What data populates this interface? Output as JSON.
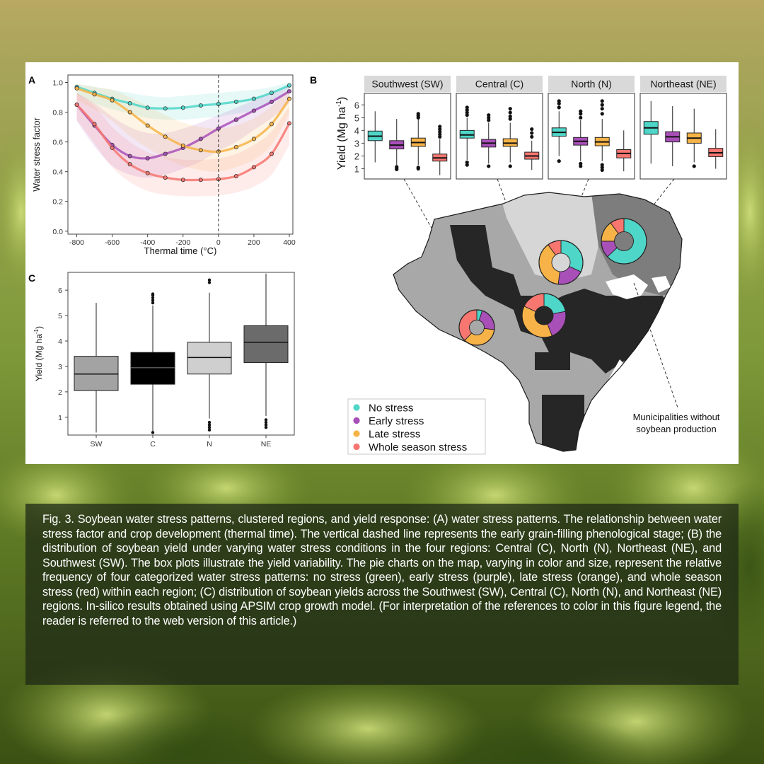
{
  "chart_data": [
    {
      "panel_label": "A",
      "type": "line",
      "xlabel": "Thermal time (°C)",
      "ylabel": "Water stress factor",
      "xlim": [
        -850,
        420
      ],
      "ylim": [
        -0.02,
        1.05
      ],
      "xticks": [
        -800,
        -600,
        -400,
        -200,
        0,
        200,
        400
      ],
      "xtick_labels": [
        "-800",
        "-600",
        "-400",
        "-200",
        "0",
        "200",
        "400"
      ],
      "yticks": [
        0.0,
        0.2,
        0.4,
        0.6,
        0.8,
        1.0
      ],
      "ytick_labels": [
        "0.0",
        "0.2",
        "0.4",
        "0.6",
        "0.8",
        "1.0"
      ],
      "grid": false,
      "vline_x": 0,
      "x": [
        -800,
        -700,
        -600,
        -500,
        -400,
        -300,
        -200,
        -100,
        0,
        100,
        200,
        300,
        400
      ],
      "series": [
        {
          "color": "#4ed6c8",
          "values": [
            0.97,
            0.93,
            0.89,
            0.86,
            0.83,
            0.825,
            0.83,
            0.845,
            0.855,
            0.87,
            0.89,
            0.93,
            0.98
          ],
          "band_upper": [
            0.99,
            0.97,
            0.95,
            0.93,
            0.91,
            0.9,
            0.91,
            0.92,
            0.93,
            0.94,
            0.95,
            0.97,
            1.0
          ],
          "band_lower": [
            0.92,
            0.86,
            0.82,
            0.79,
            0.76,
            0.75,
            0.75,
            0.76,
            0.77,
            0.79,
            0.81,
            0.86,
            0.94
          ]
        },
        {
          "color": "#a84fb8",
          "values": [
            0.85,
            0.71,
            0.58,
            0.505,
            0.49,
            0.52,
            0.56,
            0.62,
            0.69,
            0.75,
            0.81,
            0.87,
            0.94
          ],
          "band_upper": [
            0.93,
            0.86,
            0.77,
            0.7,
            0.66,
            0.66,
            0.69,
            0.73,
            0.78,
            0.83,
            0.88,
            0.93,
            0.98
          ],
          "band_lower": [
            0.74,
            0.57,
            0.44,
            0.38,
            0.36,
            0.38,
            0.42,
            0.47,
            0.54,
            0.6,
            0.68,
            0.76,
            0.86
          ]
        },
        {
          "color": "#f7b347",
          "values": [
            0.96,
            0.92,
            0.88,
            0.8,
            0.71,
            0.635,
            0.575,
            0.545,
            0.535,
            0.565,
            0.62,
            0.72,
            0.89
          ],
          "band_upper": [
            0.99,
            0.97,
            0.95,
            0.9,
            0.84,
            0.78,
            0.73,
            0.7,
            0.69,
            0.71,
            0.76,
            0.84,
            0.95
          ],
          "band_lower": [
            0.88,
            0.82,
            0.74,
            0.64,
            0.56,
            0.49,
            0.44,
            0.41,
            0.4,
            0.43,
            0.48,
            0.58,
            0.79
          ]
        },
        {
          "color": "#f77670",
          "values": [
            0.85,
            0.72,
            0.56,
            0.45,
            0.39,
            0.36,
            0.345,
            0.345,
            0.35,
            0.37,
            0.43,
            0.52,
            0.725
          ],
          "band_upper": [
            0.93,
            0.84,
            0.7,
            0.6,
            0.53,
            0.5,
            0.48,
            0.48,
            0.49,
            0.52,
            0.58,
            0.67,
            0.84
          ],
          "band_lower": [
            0.75,
            0.59,
            0.43,
            0.33,
            0.27,
            0.245,
            0.235,
            0.235,
            0.24,
            0.26,
            0.3,
            0.38,
            0.58
          ]
        }
      ]
    },
    {
      "panel_label": "B",
      "type": "box",
      "ylabel": "Yield (Mg ha",
      "ylabel_sup": "-1",
      "ylabel_close": ")",
      "ylim": [
        0.2,
        6.9
      ],
      "yticks": [
        1,
        2,
        3,
        4,
        5,
        6
      ],
      "ytick_labels": [
        "1",
        "2",
        "3",
        "4",
        "5",
        "6"
      ],
      "panels": [
        {
          "title": "Southwest (SW)",
          "boxes": [
            {
              "q1": 3.2,
              "median": 3.55,
              "q3": 3.95,
              "lo": 1.5,
              "hi": 5.5,
              "outliers": []
            },
            {
              "q1": 2.55,
              "median": 2.85,
              "q3": 3.2,
              "lo": 1.3,
              "hi": 4.9,
              "outliers": [
                0.95,
                1.05,
                1.15
              ]
            },
            {
              "q1": 2.75,
              "median": 3.05,
              "q3": 3.4,
              "lo": 1.3,
              "hi": 4.9,
              "outliers": [
                1.0,
                1.1,
                5.0,
                5.15,
                5.3
              ]
            },
            {
              "q1": 1.6,
              "median": 1.85,
              "q3": 2.15,
              "lo": 0.5,
              "hi": 3.3,
              "outliers": [
                3.5,
                3.7,
                3.9,
                4.1,
                4.3
              ]
            }
          ]
        },
        {
          "title": "Central (C)",
          "boxes": [
            {
              "q1": 3.4,
              "median": 3.65,
              "q3": 4.0,
              "lo": 1.7,
              "hi": 5.0,
              "outliers": [
                1.3,
                1.5,
                5.2,
                5.4,
                5.6,
                5.8
              ]
            },
            {
              "q1": 2.7,
              "median": 3.0,
              "q3": 3.3,
              "lo": 1.4,
              "hi": 4.6,
              "outliers": [
                1.2,
                4.8,
                5.0,
                5.2
              ]
            },
            {
              "q1": 2.75,
              "median": 3.0,
              "q3": 3.35,
              "lo": 1.5,
              "hi": 4.6,
              "outliers": [
                1.2,
                4.9,
                5.1,
                5.4,
                5.7
              ]
            },
            {
              "q1": 1.75,
              "median": 2.0,
              "q3": 2.3,
              "lo": 0.9,
              "hi": 3.2,
              "outliers": [
                3.5,
                3.8,
                4.1
              ]
            }
          ]
        },
        {
          "title": "North (N)",
          "boxes": [
            {
              "q1": 3.55,
              "median": 3.85,
              "q3": 4.2,
              "lo": 2.0,
              "hi": 5.5,
              "outliers": [
                1.6,
                5.8,
                6.1,
                6.3
              ]
            },
            {
              "q1": 2.85,
              "median": 3.15,
              "q3": 3.45,
              "lo": 1.6,
              "hi": 4.8,
              "outliers": [
                1.2,
                1.4,
                5.0,
                5.3,
                5.5
              ]
            },
            {
              "q1": 2.8,
              "median": 3.1,
              "q3": 3.45,
              "lo": 1.6,
              "hi": 4.9,
              "outliers": [
                0.9,
                1.1,
                1.3,
                5.3,
                5.7,
                6.0,
                6.3
              ]
            },
            {
              "q1": 1.85,
              "median": 2.2,
              "q3": 2.5,
              "lo": 0.8,
              "hi": 4.0,
              "outliers": []
            }
          ]
        },
        {
          "title": "Northeast (NE)",
          "boxes": [
            {
              "q1": 3.7,
              "median": 4.2,
              "q3": 4.7,
              "lo": 1.4,
              "hi": 6.3,
              "outliers": []
            },
            {
              "q1": 3.1,
              "median": 3.5,
              "q3": 3.9,
              "lo": 1.2,
              "hi": 5.9,
              "outliers": []
            },
            {
              "q1": 3.0,
              "median": 3.4,
              "q3": 3.8,
              "lo": 1.5,
              "hi": 5.7,
              "outliers": [
                1.2
              ]
            },
            {
              "q1": 1.95,
              "median": 2.25,
              "q3": 2.6,
              "lo": 1.0,
              "hi": 4.1,
              "outliers": []
            }
          ]
        }
      ],
      "box_colors": [
        "#4ed6c8",
        "#a84fb8",
        "#f7b347",
        "#f77670"
      ],
      "map_region_colors": {
        "SW": "#a8a8a8",
        "C": "#262626",
        "N": "#d6d6d6",
        "NE": "#7d7d7d"
      },
      "pie_charts": [
        {
          "region": "SW",
          "slices": [
            0.05,
            0.22,
            0.35,
            0.38
          ]
        },
        {
          "region": "C",
          "slices": [
            0.22,
            0.22,
            0.38,
            0.18
          ]
        },
        {
          "region": "N",
          "slices": [
            0.32,
            0.2,
            0.38,
            0.1
          ]
        },
        {
          "region": "NE",
          "slices": [
            0.63,
            0.12,
            0.15,
            0.1
          ]
        }
      ],
      "legend_placement": "bottom-left",
      "legend": [
        "No stress",
        "Early stress",
        "Late stress",
        "Whole season stress"
      ],
      "annotation": [
        "Municipalities without",
        "soybean production"
      ]
    },
    {
      "panel_label": "C",
      "type": "box",
      "ylabel": "Yield (Mg ha",
      "ylabel_sup": "-1",
      "ylabel_close": ")",
      "ylim": [
        0.3,
        6.7
      ],
      "categories": [
        "SW",
        "C",
        "N",
        "NE"
      ],
      "yticks": [
        1,
        2,
        3,
        4,
        5,
        6
      ],
      "ytick_labels": [
        "1",
        "2",
        "3",
        "4",
        "5",
        "6"
      ],
      "box_colors": [
        "#a3a3a3",
        "#000000",
        "#cfcfcf",
        "#6b6b6b"
      ],
      "boxes": [
        {
          "q1": 2.05,
          "median": 2.7,
          "q3": 3.4,
          "lo": 0.4,
          "hi": 5.5,
          "outliers": []
        },
        {
          "q1": 2.3,
          "median": 2.95,
          "q3": 3.55,
          "lo": 0.45,
          "hi": 5.4,
          "outliers": [
            0.4,
            5.5,
            5.6,
            5.7,
            5.8,
            5.85
          ]
        },
        {
          "q1": 2.7,
          "median": 3.35,
          "q3": 3.95,
          "lo": 0.95,
          "hi": 5.9,
          "outliers": [
            0.5,
            0.6,
            0.7,
            0.8,
            6.3,
            6.4
          ]
        },
        {
          "q1": 3.15,
          "median": 3.95,
          "q3": 4.6,
          "lo": 1.05,
          "hi": 6.65,
          "outliers": [
            0.6,
            0.7,
            0.8,
            0.9
          ]
        }
      ]
    }
  ],
  "caption": "Fig. 3. Soybean water stress patterns, clustered regions, and yield response: (A) water stress patterns. The relationship between water stress factor and crop development (thermal time). The vertical dashed line represents the early grain-filling phenological stage; (B) the distribution of soybean yield under varying water stress conditions in the four regions: Central (C), North (N), Northeast (NE), and Southwest (SW). The box plots illustrate the yield variability. The pie charts on the map, varying in color and size, represent the relative frequency of four categorized water stress patterns: no stress (green), early stress (purple), late stress (orange), and whole season stress (red) within each region; (C) distribution of soybean yields across the Southwest (SW), Central (C), North (N), and Northeast (NE) regions. In-silico results obtained using APSIM crop growth model. (For interpretation of the references to color in this figure legend, the reader is referred to the web version of this article.)"
}
